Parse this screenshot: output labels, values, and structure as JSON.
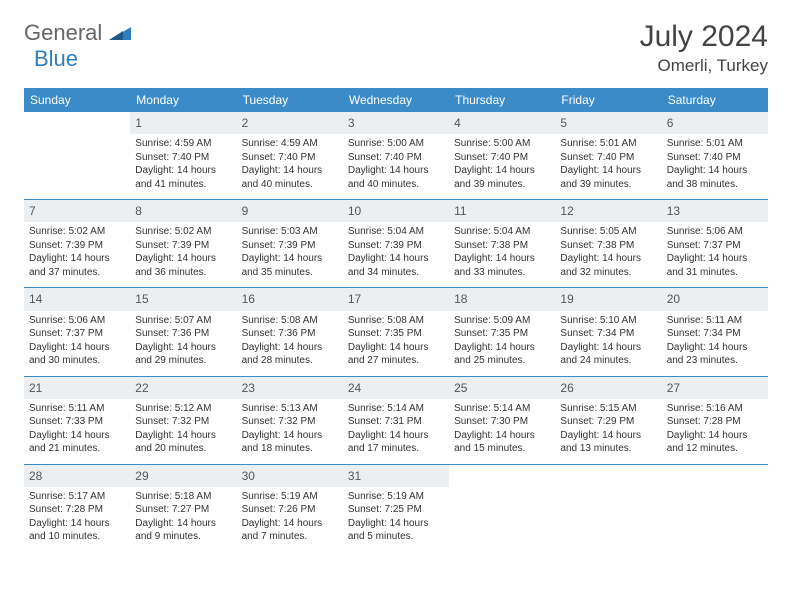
{
  "brand": {
    "part1": "General",
    "part2": "Blue"
  },
  "title": "July 2024",
  "location": "Omerli, Turkey",
  "columns": [
    "Sunday",
    "Monday",
    "Tuesday",
    "Wednesday",
    "Thursday",
    "Friday",
    "Saturday"
  ],
  "colors": {
    "header_bg": "#3b8bc8",
    "header_fg": "#ffffff",
    "daynum_bg": "#eceff1",
    "rule": "#3b8bc8",
    "brand_gray": "#666666",
    "brand_blue": "#2f7fbf"
  },
  "weeks": [
    [
      {
        "n": "",
        "sr": "",
        "ss": "",
        "dl": ""
      },
      {
        "n": "1",
        "sr": "4:59 AM",
        "ss": "7:40 PM",
        "dl": "14 hours and 41 minutes."
      },
      {
        "n": "2",
        "sr": "4:59 AM",
        "ss": "7:40 PM",
        "dl": "14 hours and 40 minutes."
      },
      {
        "n": "3",
        "sr": "5:00 AM",
        "ss": "7:40 PM",
        "dl": "14 hours and 40 minutes."
      },
      {
        "n": "4",
        "sr": "5:00 AM",
        "ss": "7:40 PM",
        "dl": "14 hours and 39 minutes."
      },
      {
        "n": "5",
        "sr": "5:01 AM",
        "ss": "7:40 PM",
        "dl": "14 hours and 39 minutes."
      },
      {
        "n": "6",
        "sr": "5:01 AM",
        "ss": "7:40 PM",
        "dl": "14 hours and 38 minutes."
      }
    ],
    [
      {
        "n": "7",
        "sr": "5:02 AM",
        "ss": "7:39 PM",
        "dl": "14 hours and 37 minutes."
      },
      {
        "n": "8",
        "sr": "5:02 AM",
        "ss": "7:39 PM",
        "dl": "14 hours and 36 minutes."
      },
      {
        "n": "9",
        "sr": "5:03 AM",
        "ss": "7:39 PM",
        "dl": "14 hours and 35 minutes."
      },
      {
        "n": "10",
        "sr": "5:04 AM",
        "ss": "7:39 PM",
        "dl": "14 hours and 34 minutes."
      },
      {
        "n": "11",
        "sr": "5:04 AM",
        "ss": "7:38 PM",
        "dl": "14 hours and 33 minutes."
      },
      {
        "n": "12",
        "sr": "5:05 AM",
        "ss": "7:38 PM",
        "dl": "14 hours and 32 minutes."
      },
      {
        "n": "13",
        "sr": "5:06 AM",
        "ss": "7:37 PM",
        "dl": "14 hours and 31 minutes."
      }
    ],
    [
      {
        "n": "14",
        "sr": "5:06 AM",
        "ss": "7:37 PM",
        "dl": "14 hours and 30 minutes."
      },
      {
        "n": "15",
        "sr": "5:07 AM",
        "ss": "7:36 PM",
        "dl": "14 hours and 29 minutes."
      },
      {
        "n": "16",
        "sr": "5:08 AM",
        "ss": "7:36 PM",
        "dl": "14 hours and 28 minutes."
      },
      {
        "n": "17",
        "sr": "5:08 AM",
        "ss": "7:35 PM",
        "dl": "14 hours and 27 minutes."
      },
      {
        "n": "18",
        "sr": "5:09 AM",
        "ss": "7:35 PM",
        "dl": "14 hours and 25 minutes."
      },
      {
        "n": "19",
        "sr": "5:10 AM",
        "ss": "7:34 PM",
        "dl": "14 hours and 24 minutes."
      },
      {
        "n": "20",
        "sr": "5:11 AM",
        "ss": "7:34 PM",
        "dl": "14 hours and 23 minutes."
      }
    ],
    [
      {
        "n": "21",
        "sr": "5:11 AM",
        "ss": "7:33 PM",
        "dl": "14 hours and 21 minutes."
      },
      {
        "n": "22",
        "sr": "5:12 AM",
        "ss": "7:32 PM",
        "dl": "14 hours and 20 minutes."
      },
      {
        "n": "23",
        "sr": "5:13 AM",
        "ss": "7:32 PM",
        "dl": "14 hours and 18 minutes."
      },
      {
        "n": "24",
        "sr": "5:14 AM",
        "ss": "7:31 PM",
        "dl": "14 hours and 17 minutes."
      },
      {
        "n": "25",
        "sr": "5:14 AM",
        "ss": "7:30 PM",
        "dl": "14 hours and 15 minutes."
      },
      {
        "n": "26",
        "sr": "5:15 AM",
        "ss": "7:29 PM",
        "dl": "14 hours and 13 minutes."
      },
      {
        "n": "27",
        "sr": "5:16 AM",
        "ss": "7:28 PM",
        "dl": "14 hours and 12 minutes."
      }
    ],
    [
      {
        "n": "28",
        "sr": "5:17 AM",
        "ss": "7:28 PM",
        "dl": "14 hours and 10 minutes."
      },
      {
        "n": "29",
        "sr": "5:18 AM",
        "ss": "7:27 PM",
        "dl": "14 hours and 9 minutes."
      },
      {
        "n": "30",
        "sr": "5:19 AM",
        "ss": "7:26 PM",
        "dl": "14 hours and 7 minutes."
      },
      {
        "n": "31",
        "sr": "5:19 AM",
        "ss": "7:25 PM",
        "dl": "14 hours and 5 minutes."
      },
      {
        "n": "",
        "sr": "",
        "ss": "",
        "dl": ""
      },
      {
        "n": "",
        "sr": "",
        "ss": "",
        "dl": ""
      },
      {
        "n": "",
        "sr": "",
        "ss": "",
        "dl": ""
      }
    ]
  ],
  "labels": {
    "sunrise": "Sunrise: ",
    "sunset": "Sunset: ",
    "daylight": "Daylight: "
  }
}
